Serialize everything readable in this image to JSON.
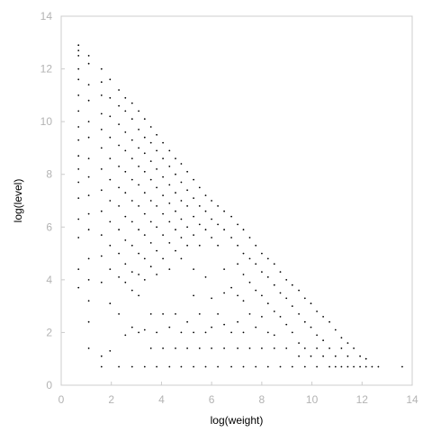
{
  "chart_data": {
    "type": "scatter",
    "title": "",
    "xlabel": "log(weight)",
    "ylabel": "log(level)",
    "xlim": [
      0,
      14
    ],
    "ylim": [
      0,
      14
    ],
    "xticks": [
      "0",
      "2",
      "4",
      "6",
      "8",
      "10",
      "12",
      "14"
    ],
    "yticks": [
      "0",
      "2",
      "4",
      "6",
      "8",
      "10",
      "12",
      "14"
    ],
    "grid": false,
    "legend": "none",
    "colors": {
      "points": "#000000",
      "frame": "#cccccc",
      "tick_text": "#b3b3b3"
    },
    "series": [
      {
        "values": [
          [
            0.69,
            12.9
          ],
          [
            0.69,
            12.7
          ],
          [
            0.69,
            12.5
          ],
          [
            0.69,
            12.0
          ],
          [
            0.69,
            11.6
          ],
          [
            0.69,
            11.0
          ],
          [
            0.69,
            10.4
          ],
          [
            0.69,
            9.8
          ],
          [
            0.69,
            9.3
          ],
          [
            0.69,
            8.7
          ],
          [
            0.69,
            8.2
          ],
          [
            0.69,
            7.7
          ],
          [
            0.69,
            7.1
          ],
          [
            0.69,
            6.3
          ],
          [
            0.69,
            5.6
          ],
          [
            0.69,
            4.4
          ],
          [
            0.69,
            3.7
          ],
          [
            1.1,
            12.5
          ],
          [
            1.1,
            12.2
          ],
          [
            1.1,
            11.4
          ],
          [
            1.1,
            10.8
          ],
          [
            1.1,
            10.0
          ],
          [
            1.1,
            9.4
          ],
          [
            1.1,
            8.6
          ],
          [
            1.1,
            7.9
          ],
          [
            1.1,
            7.2
          ],
          [
            1.1,
            6.5
          ],
          [
            1.1,
            5.9
          ],
          [
            1.1,
            4.8
          ],
          [
            1.1,
            4.0
          ],
          [
            1.1,
            3.2
          ],
          [
            1.1,
            2.4
          ],
          [
            1.1,
            1.4
          ],
          [
            1.61,
            12.0
          ],
          [
            1.61,
            11.5
          ],
          [
            1.61,
            11.0
          ],
          [
            1.61,
            10.3
          ],
          [
            1.61,
            9.7
          ],
          [
            1.61,
            9.0
          ],
          [
            1.61,
            8.2
          ],
          [
            1.61,
            7.4
          ],
          [
            1.61,
            6.6
          ],
          [
            1.61,
            5.7
          ],
          [
            1.61,
            4.9
          ],
          [
            1.61,
            3.9
          ],
          [
            1.61,
            1.1
          ],
          [
            1.61,
            0.7
          ],
          [
            1.95,
            11.6
          ],
          [
            1.95,
            10.9
          ],
          [
            1.95,
            10.2
          ],
          [
            1.95,
            9.4
          ],
          [
            1.95,
            8.6
          ],
          [
            1.95,
            7.8
          ],
          [
            1.95,
            7.0
          ],
          [
            1.95,
            6.2
          ],
          [
            1.95,
            5.3
          ],
          [
            1.95,
            4.4
          ],
          [
            1.95,
            3.1
          ],
          [
            1.95,
            1.3
          ],
          [
            2.3,
            11.2
          ],
          [
            2.3,
            10.6
          ],
          [
            2.3,
            9.9
          ],
          [
            2.3,
            9.1
          ],
          [
            2.3,
            8.3
          ],
          [
            2.3,
            7.5
          ],
          [
            2.3,
            6.8
          ],
          [
            2.3,
            5.9
          ],
          [
            2.3,
            5.0
          ],
          [
            2.3,
            4.1
          ],
          [
            2.3,
            2.7
          ],
          [
            2.3,
            0.7
          ],
          [
            2.56,
            10.9
          ],
          [
            2.56,
            10.4
          ],
          [
            2.56,
            9.6
          ],
          [
            2.56,
            8.9
          ],
          [
            2.56,
            8.1
          ],
          [
            2.56,
            7.3
          ],
          [
            2.56,
            6.4
          ],
          [
            2.56,
            5.5
          ],
          [
            2.56,
            4.6
          ],
          [
            2.56,
            3.9
          ],
          [
            2.56,
            1.9
          ],
          [
            2.83,
            10.7
          ],
          [
            2.83,
            10.1
          ],
          [
            2.83,
            9.3
          ],
          [
            2.83,
            8.6
          ],
          [
            2.83,
            7.8
          ],
          [
            2.83,
            7.0
          ],
          [
            2.83,
            6.2
          ],
          [
            2.83,
            5.3
          ],
          [
            2.83,
            4.3
          ],
          [
            2.83,
            3.6
          ],
          [
            2.83,
            2.2
          ],
          [
            2.83,
            0.7
          ],
          [
            3.09,
            10.4
          ],
          [
            3.09,
            9.7
          ],
          [
            3.09,
            9.0
          ],
          [
            3.09,
            8.3
          ],
          [
            3.09,
            7.6
          ],
          [
            3.09,
            6.8
          ],
          [
            3.09,
            5.9
          ],
          [
            3.09,
            5.0
          ],
          [
            3.09,
            4.2
          ],
          [
            3.09,
            3.4
          ],
          [
            3.09,
            2.0
          ],
          [
            3.33,
            10.1
          ],
          [
            3.33,
            9.4
          ],
          [
            3.33,
            8.8
          ],
          [
            3.33,
            8.1
          ],
          [
            3.33,
            7.3
          ],
          [
            3.33,
            6.5
          ],
          [
            3.33,
            5.7
          ],
          [
            3.33,
            4.8
          ],
          [
            3.33,
            4.0
          ],
          [
            3.33,
            2.1
          ],
          [
            3.33,
            0.7
          ],
          [
            3.58,
            9.8
          ],
          [
            3.58,
            9.2
          ],
          [
            3.58,
            8.5
          ],
          [
            3.58,
            7.8
          ],
          [
            3.58,
            7.0
          ],
          [
            3.58,
            6.2
          ],
          [
            3.58,
            5.4
          ],
          [
            3.58,
            4.5
          ],
          [
            3.58,
            2.7
          ],
          [
            3.58,
            1.4
          ],
          [
            3.81,
            9.5
          ],
          [
            3.81,
            8.9
          ],
          [
            3.81,
            8.2
          ],
          [
            3.81,
            7.5
          ],
          [
            3.81,
            6.8
          ],
          [
            3.81,
            6.0
          ],
          [
            3.81,
            5.1
          ],
          [
            3.81,
            4.2
          ],
          [
            3.81,
            2.0
          ],
          [
            3.81,
            0.7
          ],
          [
            4.06,
            9.2
          ],
          [
            4.06,
            8.6
          ],
          [
            4.06,
            7.9
          ],
          [
            4.06,
            7.2
          ],
          [
            4.06,
            6.5
          ],
          [
            4.06,
            5.7
          ],
          [
            4.06,
            4.8
          ],
          [
            4.06,
            2.7
          ],
          [
            4.06,
            1.4
          ],
          [
            4.32,
            8.9
          ],
          [
            4.32,
            8.3
          ],
          [
            4.32,
            7.6
          ],
          [
            4.32,
            6.9
          ],
          [
            4.32,
            6.2
          ],
          [
            4.32,
            5.4
          ],
          [
            4.32,
            4.4
          ],
          [
            4.32,
            2.2
          ],
          [
            4.32,
            0.7
          ],
          [
            4.56,
            8.6
          ],
          [
            4.56,
            8.0
          ],
          [
            4.56,
            7.3
          ],
          [
            4.56,
            6.6
          ],
          [
            4.56,
            5.9
          ],
          [
            4.56,
            5.1
          ],
          [
            4.56,
            2.7
          ],
          [
            4.56,
            1.4
          ],
          [
            4.79,
            8.4
          ],
          [
            4.79,
            7.7
          ],
          [
            4.79,
            7.0
          ],
          [
            4.79,
            6.3
          ],
          [
            4.79,
            5.6
          ],
          [
            4.79,
            4.8
          ],
          [
            4.79,
            2.0
          ],
          [
            4.79,
            0.7
          ],
          [
            5.03,
            8.1
          ],
          [
            5.03,
            7.4
          ],
          [
            5.03,
            6.8
          ],
          [
            5.03,
            6.0
          ],
          [
            5.03,
            5.3
          ],
          [
            5.03,
            2.4
          ],
          [
            5.03,
            1.4
          ],
          [
            5.28,
            7.8
          ],
          [
            5.28,
            7.1
          ],
          [
            5.28,
            6.4
          ],
          [
            5.28,
            5.7
          ],
          [
            5.28,
            4.4
          ],
          [
            5.28,
            3.4
          ],
          [
            5.28,
            2.0
          ],
          [
            5.28,
            0.7
          ],
          [
            5.52,
            7.5
          ],
          [
            5.52,
            6.8
          ],
          [
            5.52,
            6.1
          ],
          [
            5.52,
            5.3
          ],
          [
            5.52,
            2.7
          ],
          [
            5.52,
            1.4
          ],
          [
            5.76,
            7.2
          ],
          [
            5.76,
            6.6
          ],
          [
            5.76,
            5.9
          ],
          [
            5.76,
            4.1
          ],
          [
            5.76,
            2.0
          ],
          [
            5.76,
            0.7
          ],
          [
            6.0,
            7.0
          ],
          [
            6.0,
            6.3
          ],
          [
            6.0,
            5.6
          ],
          [
            6.0,
            3.3
          ],
          [
            6.0,
            2.2
          ],
          [
            6.0,
            1.4
          ],
          [
            6.25,
            6.8
          ],
          [
            6.25,
            6.1
          ],
          [
            6.25,
            5.3
          ],
          [
            6.25,
            2.7
          ],
          [
            6.25,
            0.7
          ],
          [
            6.5,
            6.6
          ],
          [
            6.5,
            5.9
          ],
          [
            6.5,
            4.4
          ],
          [
            6.5,
            3.5
          ],
          [
            6.5,
            2.3
          ],
          [
            6.5,
            1.4
          ],
          [
            6.79,
            6.4
          ],
          [
            6.79,
            5.6
          ],
          [
            6.79,
            3.7
          ],
          [
            6.79,
            2.0
          ],
          [
            6.79,
            0.7
          ],
          [
            7.04,
            6.1
          ],
          [
            7.04,
            5.3
          ],
          [
            7.04,
            4.6
          ],
          [
            7.04,
            3.4
          ],
          [
            7.04,
            2.4
          ],
          [
            7.04,
            1.4
          ],
          [
            7.27,
            5.9
          ],
          [
            7.27,
            5.0
          ],
          [
            7.27,
            4.2
          ],
          [
            7.27,
            3.2
          ],
          [
            7.27,
            2.0
          ],
          [
            7.27,
            0.7
          ],
          [
            7.52,
            5.6
          ],
          [
            7.52,
            4.8
          ],
          [
            7.52,
            3.9
          ],
          [
            7.52,
            2.7
          ],
          [
            7.52,
            1.4
          ],
          [
            7.76,
            5.3
          ],
          [
            7.76,
            4.6
          ],
          [
            7.76,
            3.6
          ],
          [
            7.76,
            2.2
          ],
          [
            7.76,
            0.7
          ],
          [
            8.0,
            5.0
          ],
          [
            8.0,
            4.3
          ],
          [
            8.0,
            3.4
          ],
          [
            8.0,
            2.6
          ],
          [
            8.0,
            1.4
          ],
          [
            8.25,
            4.8
          ],
          [
            8.25,
            4.1
          ],
          [
            8.25,
            3.1
          ],
          [
            8.25,
            2.0
          ],
          [
            8.25,
            0.7
          ],
          [
            8.5,
            4.6
          ],
          [
            8.5,
            3.8
          ],
          [
            8.5,
            2.8
          ],
          [
            8.5,
            1.9
          ],
          [
            8.5,
            1.4
          ],
          [
            8.74,
            4.3
          ],
          [
            8.74,
            3.5
          ],
          [
            8.74,
            2.6
          ],
          [
            8.74,
            0.7
          ],
          [
            8.98,
            4.0
          ],
          [
            8.98,
            3.3
          ],
          [
            8.98,
            2.3
          ],
          [
            8.98,
            1.4
          ],
          [
            9.22,
            3.8
          ],
          [
            9.22,
            3.0
          ],
          [
            9.22,
            2.0
          ],
          [
            9.22,
            0.7
          ],
          [
            9.48,
            3.6
          ],
          [
            9.48,
            2.7
          ],
          [
            9.48,
            1.6
          ],
          [
            9.48,
            1.1
          ],
          [
            9.72,
            3.3
          ],
          [
            9.72,
            2.4
          ],
          [
            9.72,
            1.4
          ],
          [
            9.72,
            0.7
          ],
          [
            9.96,
            3.1
          ],
          [
            9.96,
            2.2
          ],
          [
            9.96,
            1.1
          ],
          [
            10.2,
            2.8
          ],
          [
            10.2,
            1.9
          ],
          [
            10.2,
            1.4
          ],
          [
            10.2,
            0.7
          ],
          [
            10.45,
            2.6
          ],
          [
            10.45,
            1.7
          ],
          [
            10.45,
            1.1
          ],
          [
            10.7,
            2.4
          ],
          [
            10.7,
            1.4
          ],
          [
            10.7,
            0.7
          ],
          [
            10.94,
            2.1
          ],
          [
            10.94,
            1.1
          ],
          [
            10.94,
            0.7
          ],
          [
            11.18,
            1.8
          ],
          [
            11.18,
            1.4
          ],
          [
            11.18,
            0.7
          ],
          [
            11.43,
            1.6
          ],
          [
            11.43,
            1.1
          ],
          [
            11.43,
            0.7
          ],
          [
            11.67,
            1.4
          ],
          [
            11.67,
            0.7
          ],
          [
            11.92,
            1.1
          ],
          [
            11.92,
            0.7
          ],
          [
            12.16,
            1.0
          ],
          [
            12.16,
            0.7
          ],
          [
            12.4,
            0.7
          ],
          [
            12.65,
            0.7
          ],
          [
            13.6,
            0.7
          ]
        ]
      }
    ]
  }
}
